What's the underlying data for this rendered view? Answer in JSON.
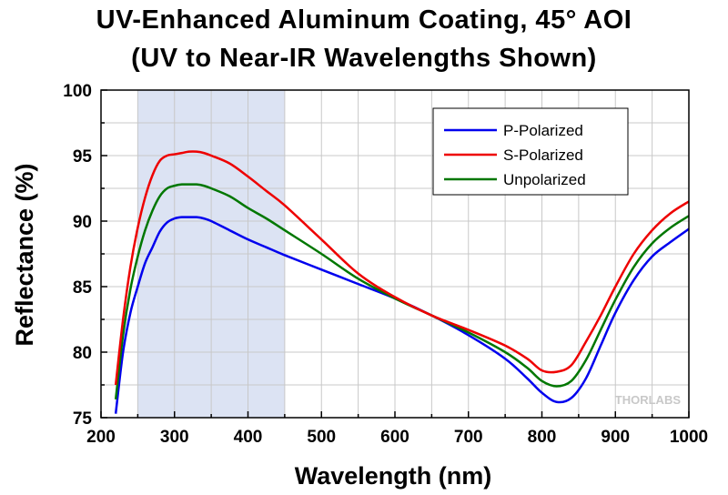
{
  "chart_data": {
    "type": "line",
    "title": "UV-Enhanced Aluminum Coating, 45° AOI",
    "subtitle": "(UV to Near-IR Wavelengths Shown)",
    "xlabel": "Wavelength (nm)",
    "ylabel": "Reflectance (%)",
    "xlim": [
      200,
      1000
    ],
    "ylim": [
      75,
      100
    ],
    "xticks": [
      "200",
      "300",
      "400",
      "500",
      "600",
      "700",
      "800",
      "900",
      "1000"
    ],
    "yticks": [
      "75",
      "80",
      "85",
      "90",
      "95",
      "100"
    ],
    "grid": true,
    "legend_position": "top-right",
    "highlight_band": {
      "from": 250,
      "to": 450,
      "color": "#dce3f3"
    },
    "watermark": "THORLABS",
    "series": [
      {
        "name": "P-Polarized",
        "color": "#0000ee",
        "points": [
          [
            220,
            75.3
          ],
          [
            230,
            80.0
          ],
          [
            240,
            83.0
          ],
          [
            250,
            85.0
          ],
          [
            260,
            86.8
          ],
          [
            270,
            88.0
          ],
          [
            280,
            89.2
          ],
          [
            290,
            89.9
          ],
          [
            300,
            90.2
          ],
          [
            310,
            90.3
          ],
          [
            320,
            90.3
          ],
          [
            330,
            90.3
          ],
          [
            340,
            90.2
          ],
          [
            350,
            90.0
          ],
          [
            375,
            89.3
          ],
          [
            400,
            88.6
          ],
          [
            425,
            88.0
          ],
          [
            450,
            87.4
          ],
          [
            500,
            86.3
          ],
          [
            550,
            85.2
          ],
          [
            600,
            84.1
          ],
          [
            650,
            82.8
          ],
          [
            700,
            81.3
          ],
          [
            750,
            79.5
          ],
          [
            780,
            78.0
          ],
          [
            800,
            76.9
          ],
          [
            820,
            76.2
          ],
          [
            840,
            76.5
          ],
          [
            860,
            78.0
          ],
          [
            880,
            80.5
          ],
          [
            900,
            83.0
          ],
          [
            925,
            85.5
          ],
          [
            950,
            87.3
          ],
          [
            975,
            88.4
          ],
          [
            1000,
            89.4
          ]
        ]
      },
      {
        "name": "S-Polarized",
        "color": "#ee0000",
        "points": [
          [
            220,
            77.5
          ],
          [
            230,
            82.5
          ],
          [
            240,
            86.5
          ],
          [
            250,
            89.5
          ],
          [
            260,
            91.8
          ],
          [
            270,
            93.5
          ],
          [
            280,
            94.6
          ],
          [
            290,
            95.0
          ],
          [
            300,
            95.1
          ],
          [
            310,
            95.2
          ],
          [
            320,
            95.3
          ],
          [
            330,
            95.3
          ],
          [
            340,
            95.2
          ],
          [
            350,
            95.0
          ],
          [
            375,
            94.4
          ],
          [
            400,
            93.4
          ],
          [
            425,
            92.3
          ],
          [
            450,
            91.2
          ],
          [
            500,
            88.6
          ],
          [
            550,
            86.0
          ],
          [
            600,
            84.2
          ],
          [
            650,
            82.8
          ],
          [
            700,
            81.7
          ],
          [
            750,
            80.5
          ],
          [
            780,
            79.5
          ],
          [
            800,
            78.6
          ],
          [
            820,
            78.5
          ],
          [
            840,
            79.0
          ],
          [
            860,
            80.8
          ],
          [
            880,
            82.8
          ],
          [
            900,
            85.0
          ],
          [
            925,
            87.5
          ],
          [
            950,
            89.3
          ],
          [
            975,
            90.6
          ],
          [
            1000,
            91.5
          ]
        ]
      },
      {
        "name": "Unpolarized",
        "color": "#007700",
        "points": [
          [
            220,
            76.4
          ],
          [
            230,
            81.3
          ],
          [
            240,
            84.8
          ],
          [
            250,
            87.3
          ],
          [
            260,
            89.3
          ],
          [
            270,
            90.8
          ],
          [
            280,
            91.9
          ],
          [
            290,
            92.5
          ],
          [
            300,
            92.7
          ],
          [
            310,
            92.8
          ],
          [
            320,
            92.8
          ],
          [
            330,
            92.8
          ],
          [
            340,
            92.7
          ],
          [
            350,
            92.5
          ],
          [
            375,
            91.9
          ],
          [
            400,
            91.0
          ],
          [
            425,
            90.2
          ],
          [
            450,
            89.3
          ],
          [
            500,
            87.5
          ],
          [
            550,
            85.6
          ],
          [
            600,
            84.1
          ],
          [
            650,
            82.8
          ],
          [
            700,
            81.5
          ],
          [
            750,
            80.0
          ],
          [
            780,
            78.8
          ],
          [
            800,
            77.8
          ],
          [
            820,
            77.4
          ],
          [
            840,
            77.8
          ],
          [
            860,
            79.4
          ],
          [
            880,
            81.7
          ],
          [
            900,
            84.0
          ],
          [
            925,
            86.5
          ],
          [
            950,
            88.3
          ],
          [
            975,
            89.5
          ],
          [
            1000,
            90.4
          ]
        ]
      }
    ]
  }
}
